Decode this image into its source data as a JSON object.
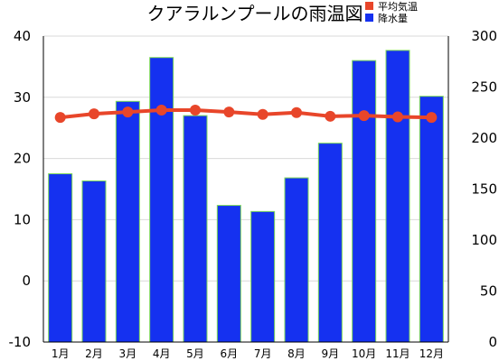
{
  "chart_data": {
    "type": "bar+line",
    "title": "クアラルンプールの雨温図",
    "categories": [
      "1月",
      "2月",
      "3月",
      "4月",
      "5月",
      "6月",
      "7月",
      "8月",
      "9月",
      "10月",
      "11月",
      "12月"
    ],
    "series": [
      {
        "name": "平均気温",
        "type": "line",
        "axis": "left",
        "color": "#e8462a",
        "values": [
          26.7,
          27.3,
          27.6,
          27.9,
          27.9,
          27.6,
          27.2,
          27.5,
          26.9,
          27.0,
          26.8,
          26.7
        ]
      },
      {
        "name": "降水量",
        "type": "bar",
        "axis": "right",
        "color": "#1531f0",
        "edge_color": "#7cd858",
        "values": [
          165,
          158,
          236,
          279,
          222,
          134,
          128,
          161,
          195,
          276,
          286,
          241
        ]
      }
    ],
    "y_left": {
      "range": [
        -10,
        40
      ],
      "ticks": [
        "40",
        "30",
        "20",
        "10",
        "0",
        "-10"
      ]
    },
    "y_right": {
      "range": [
        0,
        300
      ],
      "ticks": [
        "300",
        "250",
        "200",
        "150",
        "100",
        "50",
        "0"
      ]
    },
    "grid": "horizontal",
    "legend_position": "top-right"
  }
}
